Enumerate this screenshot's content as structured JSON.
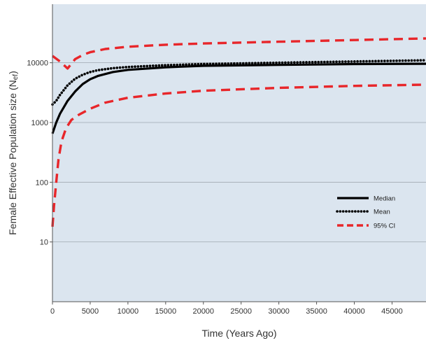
{
  "chart_data": {
    "type": "line",
    "title": "",
    "xlabel": "Time (Years Ago)",
    "ylabel": {
      "main": "Female Effective Population size (N",
      "sub": "ef",
      "tail": ")"
    },
    "xlim": [
      0,
      49500
    ],
    "ylim_log10": [
      0,
      4.98
    ],
    "y_scale": "log",
    "grid": "horizontal",
    "background": "#dbe5ef",
    "x_ticks": [
      0,
      5000,
      10000,
      15000,
      20000,
      25000,
      30000,
      35000,
      40000,
      45000
    ],
    "x_tick_labels": [
      "0",
      "5000",
      "10000",
      "15000",
      "20000",
      "25000",
      "30000",
      "35000",
      "40000",
      "45000"
    ],
    "y_ticks": [
      10,
      100,
      1000,
      10000
    ],
    "y_tick_labels": [
      "10",
      "100",
      "1000",
      "10000"
    ],
    "legend_position": "right",
    "series": [
      {
        "name": "Median",
        "style": "solid",
        "color": "#000000",
        "x": [
          0,
          500,
          1000,
          2000,
          3000,
          4000,
          5000,
          6000,
          8000,
          10000,
          15000,
          20000,
          30000,
          40000,
          49500
        ],
        "y": [
          650,
          1000,
          1400,
          2300,
          3300,
          4400,
          5300,
          6000,
          7000,
          7600,
          8400,
          8900,
          9200,
          9500,
          9600
        ]
      },
      {
        "name": "Mean",
        "style": "dotted",
        "color": "#000000",
        "x": [
          0,
          500,
          1000,
          2000,
          3000,
          4000,
          5000,
          6000,
          8000,
          10000,
          15000,
          20000,
          30000,
          40000,
          49500
        ],
        "y": [
          2000,
          2300,
          2900,
          4200,
          5400,
          6300,
          7000,
          7500,
          8100,
          8500,
          9100,
          9500,
          10000,
          10500,
          11000
        ]
      },
      {
        "name": "95% CI",
        "style": "dashed",
        "color": "#e8262a",
        "role": "upper",
        "x": [
          0,
          1000,
          2000,
          3000,
          4000,
          5000,
          7000,
          10000,
          15000,
          20000,
          30000,
          40000,
          49500
        ],
        "y": [
          13000,
          10500,
          8000,
          11500,
          13500,
          15000,
          17000,
          18500,
          20000,
          21000,
          22500,
          24000,
          25500
        ]
      },
      {
        "name": "95% CI",
        "style": "dashed",
        "color": "#e8262a",
        "role": "lower",
        "x": [
          0,
          200,
          500,
          800,
          1200,
          1800,
          2500,
          3500,
          5000,
          7000,
          10000,
          15000,
          20000,
          30000,
          40000,
          49500
        ],
        "y": [
          18,
          40,
          100,
          240,
          480,
          800,
          1100,
          1350,
          1700,
          2150,
          2600,
          3050,
          3400,
          3800,
          4100,
          4300
        ]
      }
    ],
    "legend": [
      {
        "label": "Median",
        "style": "solid"
      },
      {
        "label": "Mean",
        "style": "dotted"
      },
      {
        "label": "95% CI",
        "style": "dashed"
      }
    ]
  }
}
